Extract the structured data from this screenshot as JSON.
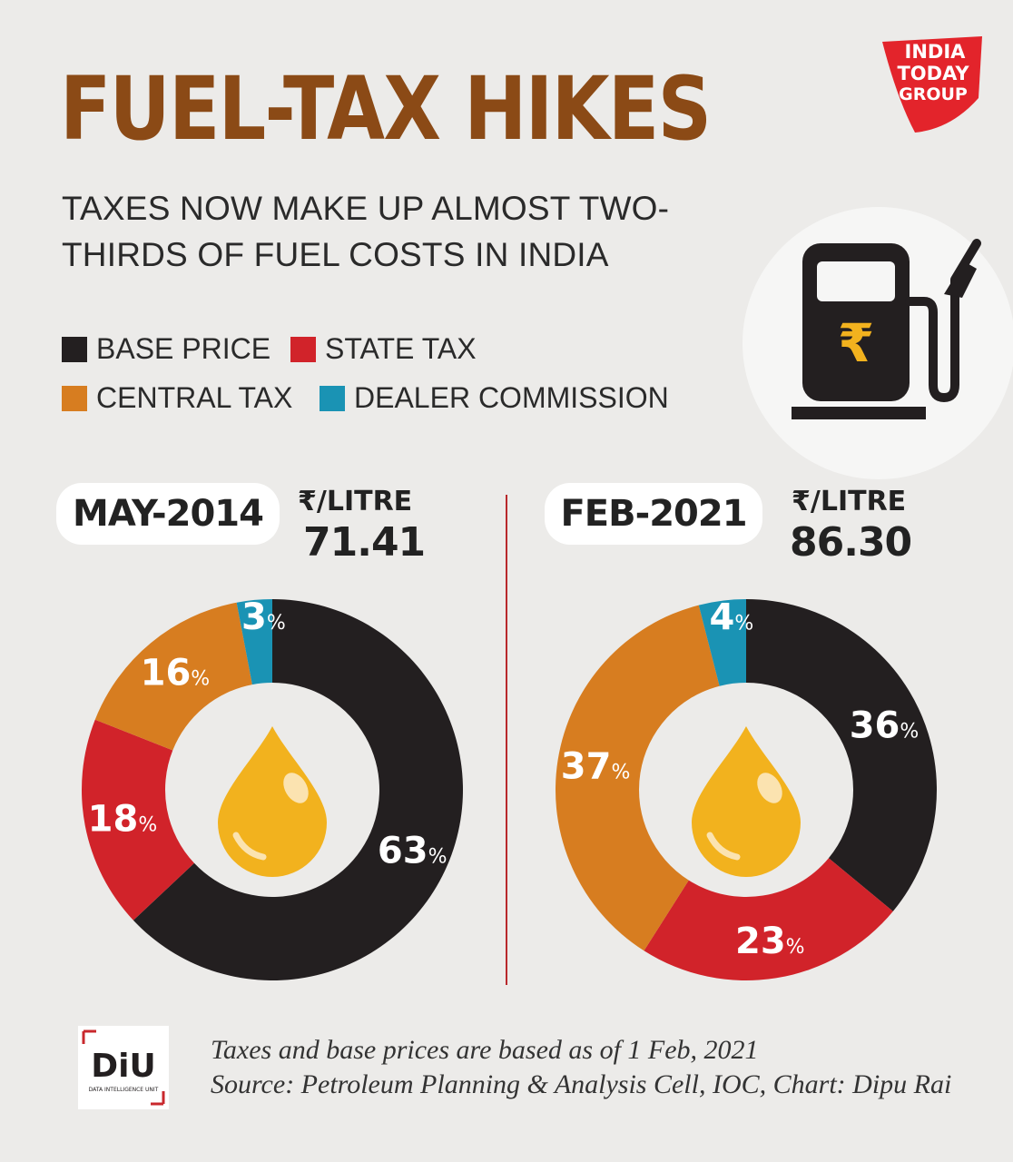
{
  "header": {
    "title": "FUEL-TAX HIKES",
    "subtitle": "TAXES NOW MAKE UP ALMOST TWO-THIRDS OF FUEL COSTS IN INDIA"
  },
  "logo": {
    "line1": "INDIA",
    "line2": "TODAY",
    "line3": "GROUP"
  },
  "pump_icon": {
    "symbol": "₹"
  },
  "legend": [
    {
      "label": "BASE PRICE",
      "color": "#231f20"
    },
    {
      "label": "STATE TAX",
      "color": "#d1232a"
    },
    {
      "label": "CENTRAL TAX",
      "color": "#d77d20"
    },
    {
      "label": "DEALER COMMISSION",
      "color": "#1a93b4"
    }
  ],
  "chart_data": [
    {
      "type": "pie",
      "title": "MAY-2014",
      "unit_label": "₹/LITRE",
      "total": "71.41",
      "slices": [
        {
          "name": "BASE PRICE",
          "value": 63,
          "label": "63",
          "color": "#231f20"
        },
        {
          "name": "STATE TAX",
          "value": 18,
          "label": "18",
          "color": "#d1232a"
        },
        {
          "name": "CENTRAL TAX",
          "value": 16,
          "label": "16",
          "color": "#d77d20"
        },
        {
          "name": "DEALER COMMISSION",
          "value": 3,
          "label": "3",
          "color": "#1a93b4"
        }
      ]
    },
    {
      "type": "pie",
      "title": "FEB-2021",
      "unit_label": "₹/LITRE",
      "total": "86.30",
      "slices": [
        {
          "name": "BASE PRICE",
          "value": 36,
          "label": "36",
          "color": "#231f20"
        },
        {
          "name": "STATE TAX",
          "value": 23,
          "label": "23",
          "color": "#d1232a"
        },
        {
          "name": "CENTRAL TAX",
          "value": 37,
          "label": "37",
          "color": "#d77d20"
        },
        {
          "name": "DEALER COMMISSION",
          "value": 4,
          "label": "4",
          "color": "#1a93b4"
        }
      ]
    }
  ],
  "percent_sign": "%",
  "footer": {
    "note": "Taxes and base prices are based as of 1 Feb, 2021",
    "source": "Source: Petroleum Planning & Analysis Cell, IOC, Chart: Dipu Rai",
    "diu_logo": "DiU",
    "diu_caption": "DATA INTELLIGENCE UNIT"
  }
}
